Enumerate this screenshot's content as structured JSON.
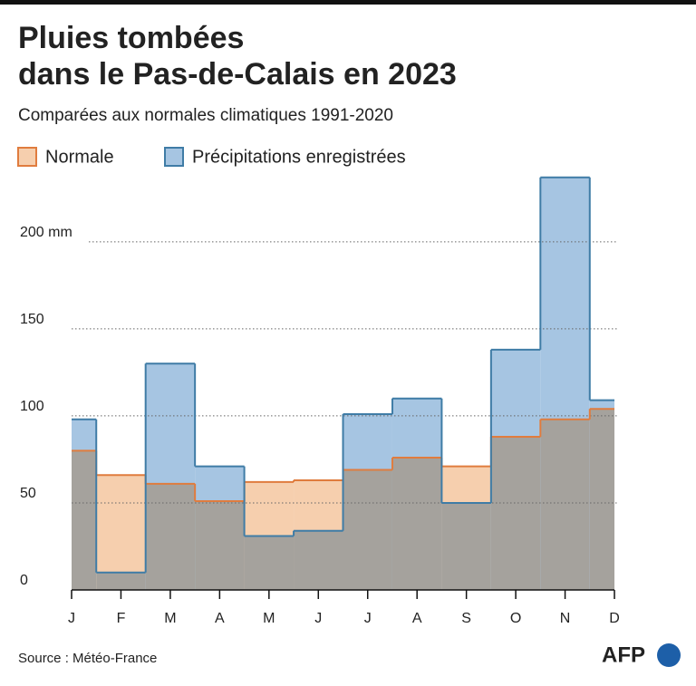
{
  "chart_data": {
    "type": "step-area",
    "title": [
      "Pluies tombées",
      "dans le Pas-de-Calais en 2023"
    ],
    "subtitle": "Comparées aux normales climatiques 1991-2020",
    "categories": [
      "J",
      "F",
      "M",
      "A",
      "M",
      "J",
      "J",
      "A",
      "S",
      "O",
      "N",
      "D"
    ],
    "series": [
      {
        "name": "Normale",
        "color": "#f6cfae",
        "stroke": "#e07c3e",
        "values": [
          80,
          66,
          61,
          51,
          62,
          63,
          69,
          76,
          71,
          88,
          98,
          104
        ]
      },
      {
        "name": "Précipitations enregistrées",
        "color": "#a6c5e2",
        "stroke": "#3f7ca6",
        "values": [
          98,
          10,
          130,
          71,
          31,
          34,
          101,
          110,
          50,
          138,
          237,
          109
        ]
      }
    ],
    "overlap_color": "#a5a29d",
    "ylim": [
      0,
      240
    ],
    "yticks": [
      0,
      50,
      100,
      150,
      {
        "value": 200,
        "label": "200 mm"
      }
    ],
    "grid": true,
    "source": "Source : Météo-France",
    "logo": "AFP"
  }
}
